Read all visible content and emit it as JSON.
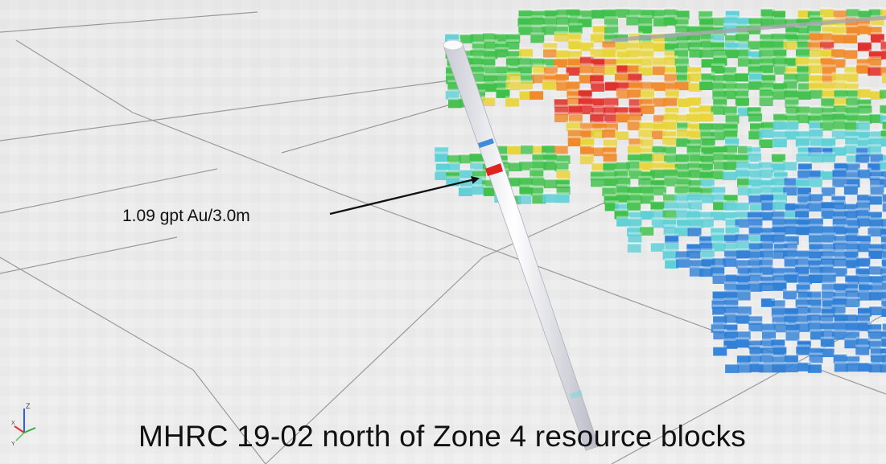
{
  "annotation": {
    "label": "1.09 gpt Au/3.0m"
  },
  "caption": "MHRC 19-02 north of Zone 4 resource blocks",
  "axis_triad": {
    "icon": "xyz-axis-triad-icon",
    "z_label": "Z",
    "x_label": "X",
    "y_label": "Y"
  },
  "colors": {
    "ground": "#e9e9e9",
    "grid_line": "#8c8c8c",
    "drillhole": "#f4f4f8",
    "intercept": "#e0231e",
    "block_blue": "#2f7fd6",
    "block_cyan": "#5fd0d6",
    "block_green": "#3fc04a",
    "block_yellow": "#e8d43a",
    "block_orange": "#ef8a2a",
    "block_red": "#e0302a",
    "axis_x": "#e03030",
    "axis_y": "#30b030",
    "axis_z": "#3060e0"
  }
}
